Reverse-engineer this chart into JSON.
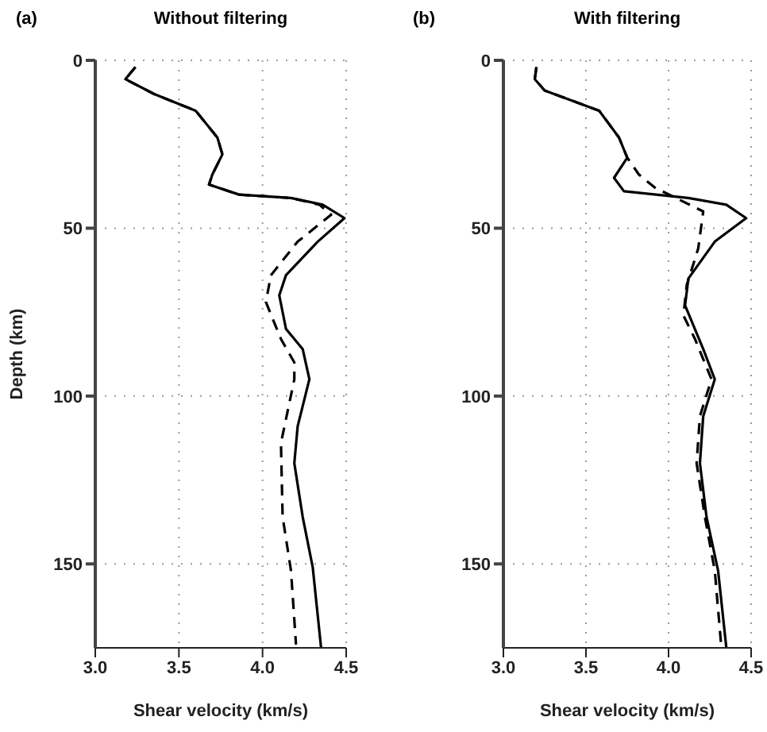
{
  "chart_data": [
    {
      "type": "line",
      "title": "Without filtering",
      "annotations": [
        "(a)"
      ],
      "xlabel": "Shear velocity (km/s)",
      "ylabel": "Depth (km)",
      "xlim": [
        3.0,
        4.5
      ],
      "xticks": [
        {
          "value": 3.0,
          "label": "3.0"
        },
        {
          "value": 3.5,
          "label": "3.5"
        },
        {
          "value": 4.0,
          "label": "4.0"
        },
        {
          "value": 4.5,
          "label": "4.5"
        }
      ],
      "ylim": [
        175,
        0
      ],
      "yticks": [
        0,
        50,
        100,
        150
      ],
      "grid": true,
      "series": [
        {
          "color": "#000000",
          "line_style": "solid",
          "x": [
            3.24,
            3.18,
            3.35,
            3.6,
            3.73,
            3.76,
            3.7,
            3.68,
            3.86,
            4.17,
            4.36,
            4.49,
            4.33,
            4.14,
            4.1,
            4.14,
            4.24,
            4.28,
            4.21,
            4.19,
            4.24,
            4.3,
            4.35
          ],
          "values": [
            2,
            5.6,
            10,
            15,
            23,
            28,
            34,
            37,
            40,
            41,
            43,
            47,
            54,
            64,
            70,
            80,
            86,
            95,
            109,
            120,
            136,
            151,
            175
          ]
        },
        {
          "color": "#000000",
          "line_style": "dashed",
          "x": [
            3.24,
            3.18,
            3.35,
            3.6,
            3.73,
            3.76,
            3.7,
            3.68,
            3.86,
            4.17,
            4.34,
            4.41,
            4.21,
            4.05,
            4.02,
            4.11,
            4.19,
            4.19,
            4.11,
            4.12,
            4.17,
            4.2
          ],
          "values": [
            2,
            5.6,
            10,
            15,
            23,
            28,
            34,
            37,
            40,
            41,
            43,
            46,
            54,
            64,
            72,
            83,
            90,
            95,
            114,
            136,
            152,
            174
          ]
        }
      ]
    },
    {
      "type": "line",
      "title": "With filtering",
      "annotations": [
        "(b)"
      ],
      "xlabel": "Shear velocity (km/s)",
      "xlim": [
        3.0,
        4.5
      ],
      "xticks": [
        {
          "value": 3.0,
          "label": "3.0"
        },
        {
          "value": 3.5,
          "label": "3.5"
        },
        {
          "value": 4.0,
          "label": "4.0"
        },
        {
          "value": 4.5,
          "label": "4.5"
        }
      ],
      "ylim": [
        175,
        0
      ],
      "yticks": [
        0,
        50,
        100,
        150
      ],
      "grid": true,
      "series": [
        {
          "color": "#000000",
          "line_style": "solid",
          "x": [
            3.2,
            3.19,
            3.25,
            3.58,
            3.7,
            3.75,
            3.67,
            3.73,
            4.12,
            4.35,
            4.47,
            4.28,
            4.12,
            4.1,
            4.21,
            4.28,
            4.21,
            4.19,
            4.23,
            4.3,
            4.35
          ],
          "values": [
            2,
            5.6,
            9,
            15,
            23,
            29,
            35,
            39,
            41,
            43,
            47,
            54,
            65,
            73,
            86,
            95,
            106,
            120,
            136,
            152,
            175
          ]
        },
        {
          "color": "#000000",
          "line_style": "dashed",
          "x": [
            3.2,
            3.19,
            3.25,
            3.58,
            3.7,
            3.75,
            3.82,
            3.92,
            4.21,
            4.18,
            4.11,
            4.09,
            4.16,
            4.26,
            4.19,
            4.17,
            4.22,
            4.28,
            4.32
          ],
          "values": [
            2,
            5.6,
            9,
            15,
            23,
            29,
            34,
            38,
            45,
            56,
            67,
            76,
            83,
            95,
            106,
            120,
            136,
            152,
            175
          ]
        }
      ]
    }
  ]
}
